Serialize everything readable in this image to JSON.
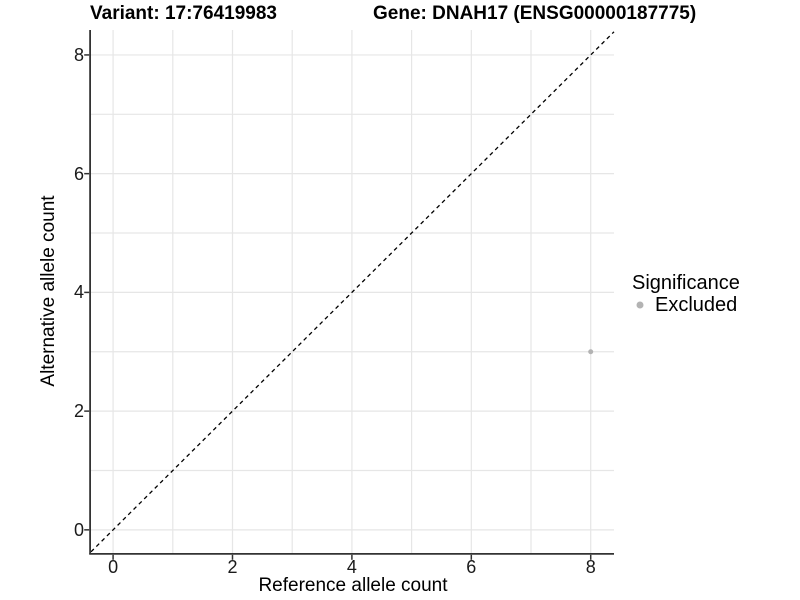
{
  "chart_data": {
    "type": "scatter",
    "titles": {
      "left": "Variant: 17:76419983",
      "right": "Gene: DNAH17 (ENSG00000187775)"
    },
    "xlabel": "Reference allele count",
    "ylabel": "Alternative allele count",
    "xlim": [
      -0.37,
      8.39
    ],
    "ylim": [
      -0.39,
      8.42
    ],
    "x_ticks": [
      0,
      2,
      4,
      6,
      8
    ],
    "y_ticks": [
      0,
      2,
      4,
      6,
      8
    ],
    "gridline_step": 1,
    "grid_color": "#e6e6e6",
    "axis_color": "#333333",
    "identity_line": {
      "style": "dashed",
      "color": "#000000",
      "slope": 1,
      "intercept": 0
    },
    "points": [
      {
        "x": 8,
        "y": 3,
        "series": "Excluded"
      }
    ],
    "point_color": "#b3b3b3",
    "point_radius": 2.5,
    "legend": {
      "title": "Significance",
      "position": "right",
      "items": [
        {
          "label": "Excluded",
          "color": "#b3b3b3"
        }
      ]
    }
  }
}
